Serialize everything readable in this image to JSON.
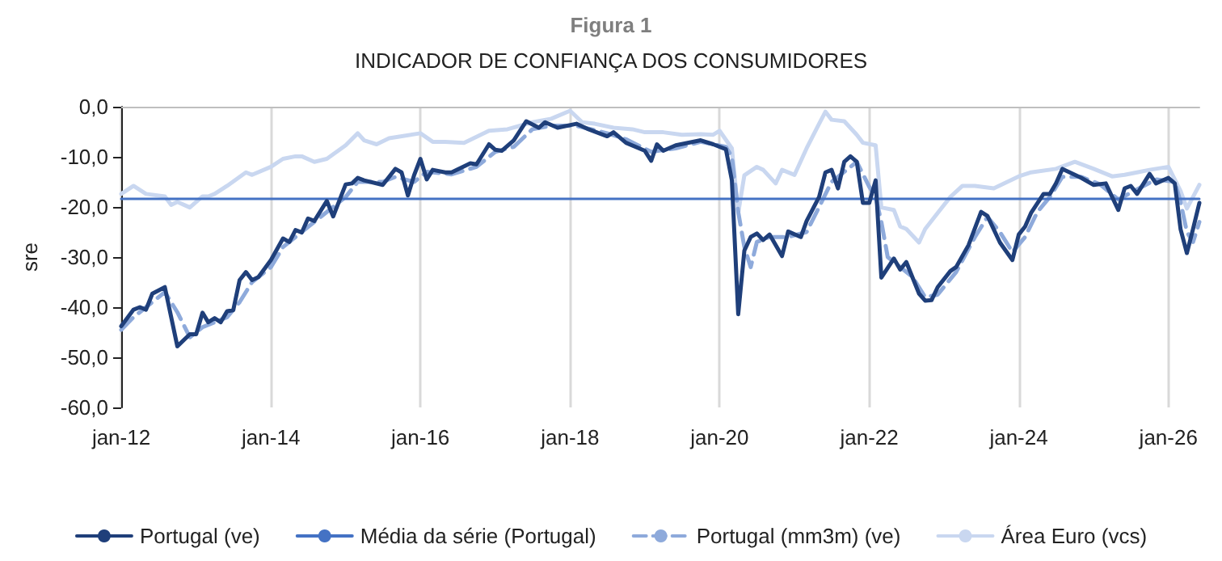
{
  "chart_data": {
    "type": "line",
    "title": "Figura 1",
    "subtitle": "INDICADOR DE CONFIANÇA DOS CONSUMIDORES",
    "ylabel": "sre",
    "xlim": [
      "2012-01",
      "2026-06"
    ],
    "xticks": [
      {
        "value": "2012-01",
        "label": "jan-12"
      },
      {
        "value": "2014-01",
        "label": "jan-14"
      },
      {
        "value": "2016-01",
        "label": "jan-16"
      },
      {
        "value": "2018-01",
        "label": "jan-18"
      },
      {
        "value": "2020-01",
        "label": "jan-20"
      },
      {
        "value": "2022-01",
        "label": "jan-22"
      },
      {
        "value": "2024-01",
        "label": "jan-24"
      },
      {
        "value": "2026-01",
        "label": "jan-26"
      }
    ],
    "ylim": [
      -60,
      0
    ],
    "yticks": [
      {
        "value": -60,
        "label": "-60,0"
      },
      {
        "value": -50,
        "label": "-50,0"
      },
      {
        "value": -40,
        "label": "-40,0"
      },
      {
        "value": -30,
        "label": "-30,0"
      },
      {
        "value": -20,
        "label": "-20,0"
      },
      {
        "value": -10,
        "label": "-10,0"
      },
      {
        "value": 0,
        "label": "0,0"
      }
    ],
    "grid": "x",
    "legend": "bottom",
    "marker": "none",
    "series": [
      {
        "name": "Área Euro (vcs)",
        "color": "#c9d7f0",
        "line_style": "solid",
        "x": [
          "2012-01",
          "2012-03",
          "2012-05",
          "2012-08",
          "2012-09",
          "2012-10",
          "2012-12",
          "2013-02",
          "2013-03",
          "2013-04",
          "2013-06",
          "2013-09",
          "2013-10",
          "2014-01",
          "2014-03",
          "2014-05",
          "2014-06",
          "2014-08",
          "2014-10",
          "2015-01",
          "2015-03",
          "2015-04",
          "2015-06",
          "2015-08",
          "2016-01",
          "2016-03",
          "2016-05",
          "2016-08",
          "2016-12",
          "2017-03",
          "2017-07",
          "2017-10",
          "2018-01",
          "2018-03",
          "2018-05",
          "2018-08",
          "2018-11",
          "2019-01",
          "2019-04",
          "2019-07",
          "2019-10",
          "2019-12",
          "2020-01",
          "2020-03",
          "2020-04",
          "2020-05",
          "2020-07",
          "2020-08",
          "2020-10",
          "2020-11",
          "2021-01",
          "2021-03",
          "2021-05",
          "2021-06",
          "2021-07",
          "2021-09",
          "2021-11",
          "2021-12",
          "2022-02",
          "2022-03",
          "2022-05",
          "2022-06",
          "2022-07",
          "2022-09",
          "2022-10",
          "2022-12",
          "2023-02",
          "2023-04",
          "2023-06",
          "2023-09",
          "2024-01",
          "2024-03",
          "2024-07",
          "2024-10",
          "2025-01",
          "2025-04",
          "2025-06",
          "2025-08",
          "2025-10",
          "2026-01",
          "2026-03",
          "2026-04",
          "2026-05",
          "2026-06"
        ],
        "values": [
          -17.4,
          -15.8,
          -17.4,
          -17.9,
          -19.6,
          -19.0,
          -20.1,
          -17.9,
          -17.9,
          -17.4,
          -15.8,
          -13.1,
          -13.6,
          -12.0,
          -10.4,
          -9.9,
          -9.9,
          -11.0,
          -10.4,
          -7.7,
          -5.3,
          -6.7,
          -7.5,
          -6.3,
          -5.3,
          -7.0,
          -7.0,
          -7.2,
          -4.8,
          -4.5,
          -3.1,
          -2.4,
          -0.8,
          -3.1,
          -3.4,
          -4.2,
          -4.5,
          -5.1,
          -5.1,
          -5.6,
          -5.5,
          -5.6,
          -4.8,
          -8.3,
          -21.2,
          -13.7,
          -12.0,
          -12.6,
          -15.3,
          -12.6,
          -13.6,
          -8.3,
          -3.4,
          -1.0,
          -2.6,
          -2.9,
          -5.6,
          -7.2,
          -7.7,
          -20.1,
          -20.6,
          -23.9,
          -24.4,
          -27.1,
          -24.4,
          -21.2,
          -18.0,
          -15.8,
          -15.8,
          -16.3,
          -13.9,
          -13.1,
          -12.4,
          -11.0,
          -12.4,
          -13.9,
          -13.6,
          -13.1,
          -12.6,
          -12.0,
          -16.8,
          -20.3,
          -18.0,
          -15.6
        ]
      },
      {
        "name": "Portugal (mm3m) (ve)",
        "color": "#8eaadb",
        "line_style": "dashed",
        "x": [
          "2012-01",
          "2012-03",
          "2012-05",
          "2012-08",
          "2012-10",
          "2012-12",
          "2013-02",
          "2013-04",
          "2013-06",
          "2013-08",
          "2013-10",
          "2014-01",
          "2014-03",
          "2014-05",
          "2014-07",
          "2014-10",
          "2015-01",
          "2015-03",
          "2015-07",
          "2015-09",
          "2015-12",
          "2016-02",
          "2016-06",
          "2016-10",
          "2017-01",
          "2017-04",
          "2017-07",
          "2017-10",
          "2018-02",
          "2018-07",
          "2018-10",
          "2019-02",
          "2019-06",
          "2019-10",
          "2020-02",
          "2020-03",
          "2020-04",
          "2020-05",
          "2020-06",
          "2020-07",
          "2020-09",
          "2020-12",
          "2021-03",
          "2021-05",
          "2021-07",
          "2021-09",
          "2021-11",
          "2022-01",
          "2022-02",
          "2022-03",
          "2022-04",
          "2022-06",
          "2022-08",
          "2022-10",
          "2022-12",
          "2023-03",
          "2023-06",
          "2023-08",
          "2023-10",
          "2023-12",
          "2024-02",
          "2024-04",
          "2024-06",
          "2024-08",
          "2024-11",
          "2025-02",
          "2025-05",
          "2025-08",
          "2025-11",
          "2026-02",
          "2026-03",
          "2026-04",
          "2026-05",
          "2026-06"
        ],
        "values": [
          -44.5,
          -42,
          -40,
          -37,
          -41,
          -46,
          -44,
          -43,
          -42,
          -39,
          -35,
          -32,
          -28,
          -26,
          -24,
          -21,
          -18,
          -15,
          -15,
          -14,
          -15,
          -13,
          -13.5,
          -12,
          -9,
          -8,
          -4.5,
          -3.8,
          -3.8,
          -5.3,
          -6.5,
          -9,
          -8.3,
          -7,
          -8,
          -10,
          -21,
          -28,
          -32,
          -27,
          -26,
          -26,
          -25,
          -20,
          -15,
          -13,
          -11,
          -16,
          -18,
          -23,
          -30,
          -32,
          -34,
          -38,
          -37.5,
          -33,
          -26,
          -22,
          -25,
          -29,
          -26,
          -21,
          -18,
          -14,
          -14,
          -15.5,
          -18.5,
          -16.5,
          -14.5,
          -15,
          -19,
          -25,
          -27,
          -23
        ]
      },
      {
        "name": "Média da série (Portugal)",
        "color": "#4472c4",
        "line_style": "solid",
        "x": [
          "2012-01",
          "2026-06"
        ],
        "values": [
          -18.4,
          -18.4
        ]
      },
      {
        "name": "Portugal (ve)",
        "color": "#1f3f7a",
        "line_style": "solid",
        "x": [
          "2012-01",
          "2012-03",
          "2012-04",
          "2012-05",
          "2012-06",
          "2012-08",
          "2012-10",
          "2012-12",
          "2013-01",
          "2013-02",
          "2013-03",
          "2013-04",
          "2013-05",
          "2013-06",
          "2013-07",
          "2013-08",
          "2013-09",
          "2013-10",
          "2013-11",
          "2014-01",
          "2014-03",
          "2014-04",
          "2014-05",
          "2014-06",
          "2014-07",
          "2014-08",
          "2014-10",
          "2014-11",
          "2015-01",
          "2015-02",
          "2015-03",
          "2015-04",
          "2015-07",
          "2015-09",
          "2015-10",
          "2015-11",
          "2015-12",
          "2016-01",
          "2016-02",
          "2016-03",
          "2016-05",
          "2016-06",
          "2016-09",
          "2016-10",
          "2016-12",
          "2017-01",
          "2017-02",
          "2017-04",
          "2017-06",
          "2017-08",
          "2017-09",
          "2017-11",
          "2018-02",
          "2018-04",
          "2018-07",
          "2018-08",
          "2018-10",
          "2019-01",
          "2019-02",
          "2019-03",
          "2019-04",
          "2019-06",
          "2019-10",
          "2019-12",
          "2020-02",
          "2020-03",
          "2020-04",
          "2020-05",
          "2020-06",
          "2020-07",
          "2020-08",
          "2020-09",
          "2020-11",
          "2020-12",
          "2021-02",
          "2021-03",
          "2021-05",
          "2021-06",
          "2021-07",
          "2021-08",
          "2021-09",
          "2021-10",
          "2021-11",
          "2021-12",
          "2022-01",
          "2022-02",
          "2022-03",
          "2022-05",
          "2022-06",
          "2022-07",
          "2022-09",
          "2022-10",
          "2022-11",
          "2022-12",
          "2023-02",
          "2023-03",
          "2023-05",
          "2023-07",
          "2023-08",
          "2023-10",
          "2023-12",
          "2024-01",
          "2024-02",
          "2024-03",
          "2024-05",
          "2024-06",
          "2024-07",
          "2024-08",
          "2024-10",
          "2024-11",
          "2025-01",
          "2025-03",
          "2025-04",
          "2025-05",
          "2025-06",
          "2025-07",
          "2025-08",
          "2025-10",
          "2025-11",
          "2026-01",
          "2026-02",
          "2026-03",
          "2026-04",
          "2026-05",
          "2026-06"
        ],
        "values": [
          -43.8,
          -40.5,
          -40,
          -40.5,
          -37.3,
          -36,
          -47.8,
          -45.4,
          -45.4,
          -41.1,
          -43,
          -42.2,
          -43,
          -40.8,
          -40.6,
          -34.6,
          -33,
          -34.6,
          -34,
          -30.6,
          -26.3,
          -27,
          -24.6,
          -25.1,
          -22.3,
          -22.8,
          -18.8,
          -21.9,
          -15.5,
          -15.3,
          -14.2,
          -14.7,
          -15.6,
          -12.4,
          -13.1,
          -17.7,
          -13.7,
          -10.4,
          -14.5,
          -12.6,
          -13.1,
          -13.1,
          -11.3,
          -11.5,
          -7.5,
          -8.6,
          -8.8,
          -6.7,
          -2.9,
          -4.2,
          -3.1,
          -4.2,
          -3.4,
          -4.5,
          -5.9,
          -5.1,
          -7.2,
          -8.8,
          -10.8,
          -7.5,
          -8.8,
          -7.7,
          -6.7,
          -7.5,
          -8.5,
          -14.7,
          -41.4,
          -28.7,
          -26,
          -25.3,
          -26.6,
          -25.5,
          -29.8,
          -24.9,
          -26,
          -22.8,
          -18,
          -13.1,
          -12.6,
          -16.3,
          -11,
          -9.9,
          -11,
          -19.2,
          -19.2,
          -14.7,
          -34.1,
          -30.3,
          -32.5,
          -31,
          -37.3,
          -38.7,
          -38.6,
          -36,
          -32.8,
          -32,
          -27.6,
          -21,
          -21.8,
          -27.1,
          -30.6,
          -25.5,
          -23.9,
          -21.2,
          -17.4,
          -17.4,
          -15.3,
          -12.4,
          -13.6,
          -14.2,
          -15.6,
          -15.3,
          -18,
          -20.6,
          -16.3,
          -15.8,
          -17.4,
          -13.4,
          -15.3,
          -14.2,
          -15.3,
          -24.4,
          -29.2,
          -24.4,
          -19.2
        ]
      }
    ]
  }
}
